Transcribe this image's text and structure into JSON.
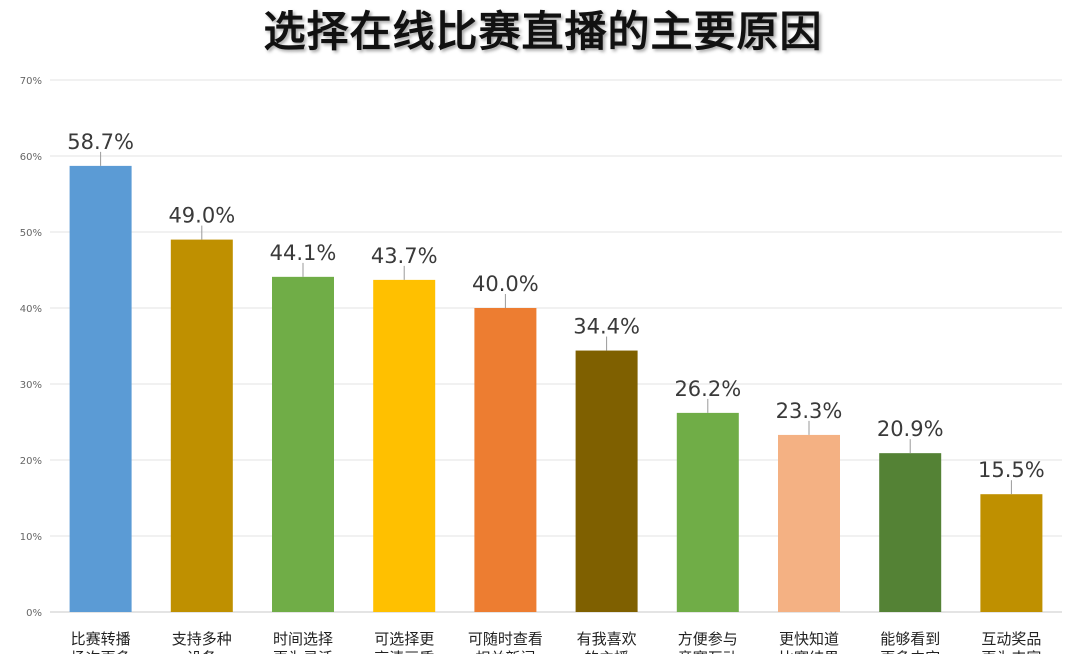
{
  "chart_data": {
    "type": "bar",
    "title": "选择在线比赛直播的主要原因",
    "xlabel": "",
    "ylabel": "",
    "ylim": [
      0,
      70
    ],
    "yticks": [
      "0%",
      "10%",
      "20%",
      "30%",
      "40%",
      "50%",
      "60%",
      "70%"
    ],
    "grid": true,
    "categories": [
      [
        "比赛转播",
        "场次更多"
      ],
      [
        "支持多种",
        "设备"
      ],
      [
        "时间选择",
        "更为灵活"
      ],
      [
        "可选择更",
        "高清画质"
      ],
      [
        "可随时查看",
        "相关新闻"
      ],
      [
        "有我喜欢",
        "的主播"
      ],
      [
        "方便参与",
        "竞赛互动"
      ],
      [
        "更快知道",
        "比赛结果"
      ],
      [
        "能够看到",
        "更多内容"
      ],
      [
        "互动奖品",
        "更为丰富"
      ]
    ],
    "values": [
      58.7,
      49.0,
      44.1,
      43.7,
      40.0,
      34.4,
      26.2,
      23.3,
      20.9,
      15.5
    ],
    "data_labels": [
      "58.7%",
      "49.0%",
      "44.1%",
      "43.7%",
      "40.0%",
      "34.4%",
      "26.2%",
      "23.3%",
      "20.9%",
      "15.5%"
    ],
    "colors": [
      "#5B9BD5",
      "#BF9000",
      "#70AD47",
      "#FFC000",
      "#ED7D31",
      "#7F6000",
      "#70AD47",
      "#F4B183",
      "#548235",
      "#BF9000"
    ]
  }
}
